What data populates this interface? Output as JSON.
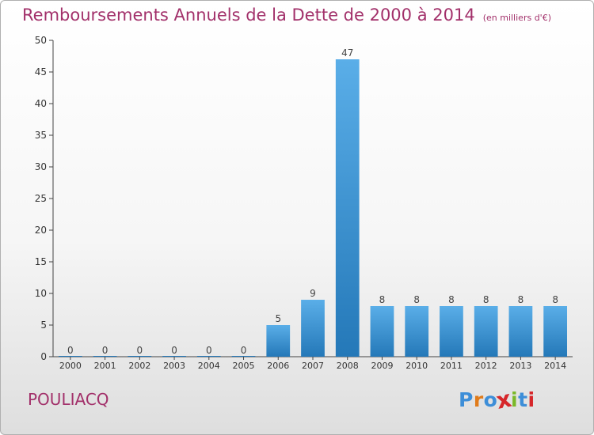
{
  "header": {
    "title": "Remboursements Annuels de la Dette de 2000 à 2014",
    "unit": "(en milliers d'€)"
  },
  "footer": {
    "commune": "POULIACQ",
    "logo_text": "Proxiti"
  },
  "colors": {
    "title": "#a2306a",
    "bar_top": "#5aaee8",
    "bar_bottom": "#2478b8",
    "logo": [
      "#3d8ed8",
      "#e07b1a",
      "#3d8ed8",
      "#d6262a",
      "#7ab829",
      "#3d8ed8",
      "#d6262a"
    ]
  },
  "chart_data": {
    "type": "bar",
    "title": "Remboursements Annuels de la Dette de 2000 à 2014",
    "xlabel": "",
    "ylabel": "",
    "categories": [
      "2000",
      "2001",
      "2002",
      "2003",
      "2004",
      "2005",
      "2006",
      "2007",
      "2008",
      "2009",
      "2010",
      "2011",
      "2012",
      "2013",
      "2014"
    ],
    "values": [
      0,
      0,
      0,
      0,
      0,
      0,
      5,
      9,
      47,
      8,
      8,
      8,
      8,
      8,
      8
    ],
    "ylim": [
      0,
      50
    ],
    "yticks": [
      0,
      5,
      10,
      15,
      20,
      25,
      30,
      35,
      40,
      45,
      50
    ],
    "grid": false,
    "data_labels": true
  }
}
